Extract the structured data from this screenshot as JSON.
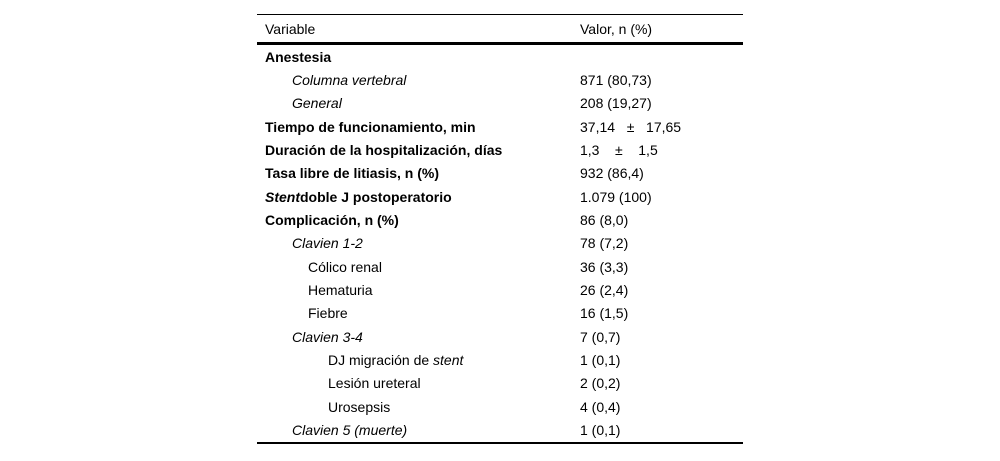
{
  "colors": {
    "background": "#ffffff",
    "text": "#000000",
    "rule": "#000000"
  },
  "table": {
    "columns": [
      "Variable",
      "Valor, n (%)"
    ],
    "rows": [
      {
        "indent": 0,
        "value": "",
        "parts": [
          {
            "t": "Anestesia",
            "b": true,
            "i": false
          }
        ]
      },
      {
        "indent": 1,
        "value": "871 (80,73)",
        "parts": [
          {
            "t": "Columna vertebral",
            "b": false,
            "i": true
          }
        ]
      },
      {
        "indent": 1,
        "value": "208 (19,27)",
        "parts": [
          {
            "t": "General",
            "b": false,
            "i": true
          }
        ]
      },
      {
        "indent": 0,
        "value": "37,14   ±   17,65",
        "parts": [
          {
            "t": "Tiempo de funcionamiento, min",
            "b": true,
            "i": false
          }
        ]
      },
      {
        "indent": 0,
        "value": "1,3    ±    1,5",
        "parts": [
          {
            "t": "Duración de la hospitalización, días",
            "b": true,
            "i": false
          }
        ]
      },
      {
        "indent": 0,
        "value": "932 (86,4)",
        "parts": [
          {
            "t": "Tasa libre de litiasis, n (%)",
            "b": true,
            "i": false
          }
        ]
      },
      {
        "indent": 0,
        "value": "1.079 (100)",
        "parts": [
          {
            "t": "Stent",
            "b": true,
            "i": true
          },
          {
            "t": "doble J postoperatorio",
            "b": true,
            "i": false
          }
        ]
      },
      {
        "indent": 0,
        "value": "86 (8,0)",
        "parts": [
          {
            "t": "Complicación, n (%)",
            "b": true,
            "i": false
          }
        ]
      },
      {
        "indent": 1,
        "value": "78 (7,2)",
        "parts": [
          {
            "t": "Clavien 1-2",
            "b": false,
            "i": true
          }
        ]
      },
      {
        "indent": 2,
        "value": "36 (3,3)",
        "parts": [
          {
            "t": "Cólico renal",
            "b": false,
            "i": false
          }
        ]
      },
      {
        "indent": 2,
        "value": "26 (2,4)",
        "parts": [
          {
            "t": "Hematuria",
            "b": false,
            "i": false
          }
        ]
      },
      {
        "indent": 2,
        "value": "16 (1,5)",
        "parts": [
          {
            "t": "Fiebre",
            "b": false,
            "i": false
          }
        ]
      },
      {
        "indent": 1,
        "value": "7 (0,7)",
        "parts": [
          {
            "t": "Clavien 3-4",
            "b": false,
            "i": true
          }
        ]
      },
      {
        "indent": 3,
        "value": "1 (0,1)",
        "parts": [
          {
            "t": "DJ migración de ",
            "b": false,
            "i": false
          },
          {
            "t": "stent",
            "b": false,
            "i": true
          }
        ]
      },
      {
        "indent": 3,
        "value": "2 (0,2)",
        "parts": [
          {
            "t": "Lesión ureteral",
            "b": false,
            "i": false
          }
        ]
      },
      {
        "indent": 3,
        "value": "4 (0,4)",
        "parts": [
          {
            "t": "Urosepsis",
            "b": false,
            "i": false
          }
        ]
      },
      {
        "indent": 1,
        "value": "1 (0,1)",
        "parts": [
          {
            "t": "Clavien 5 (muerte)",
            "b": false,
            "i": true
          }
        ]
      }
    ]
  }
}
